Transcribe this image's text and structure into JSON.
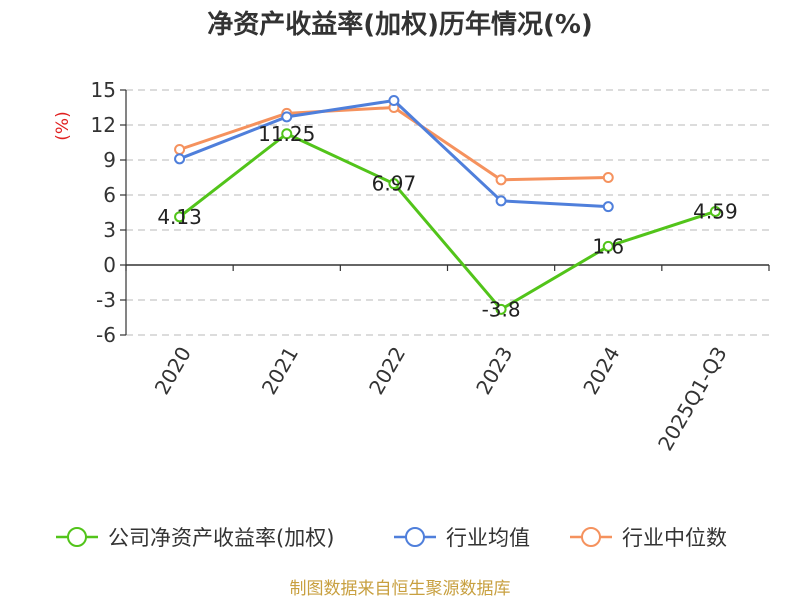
{
  "chart_data": {
    "type": "line",
    "title": "净资产收益率(加权)历年情况(%)",
    "ylabel": "(%)",
    "categories": [
      "2020",
      "2021",
      "2022",
      "2023",
      "2024",
      "2025Q1-Q3"
    ],
    "ylim": [
      -6,
      15
    ],
    "yticks": [
      15,
      12,
      9,
      6,
      3,
      0,
      -3,
      -6
    ],
    "grid": true,
    "legend_position": "bottom",
    "series": [
      {
        "name": "公司净资产收益率(加权)",
        "color": "#52c41a",
        "values": [
          4.13,
          11.25,
          6.97,
          -3.8,
          1.6,
          4.59
        ],
        "labels": [
          "4.13",
          "11.25",
          "6.97",
          "-3.8",
          "1.6",
          "4.59"
        ]
      },
      {
        "name": "行业均值",
        "color": "#4f7fdb",
        "values": [
          9.1,
          12.7,
          14.1,
          5.5,
          5.0,
          null
        ]
      },
      {
        "name": "行业中位数",
        "color": "#f5925e",
        "values": [
          9.9,
          13.0,
          13.5,
          7.3,
          7.5,
          null
        ]
      }
    ]
  },
  "source": "制图数据来自恒生聚源数据库"
}
